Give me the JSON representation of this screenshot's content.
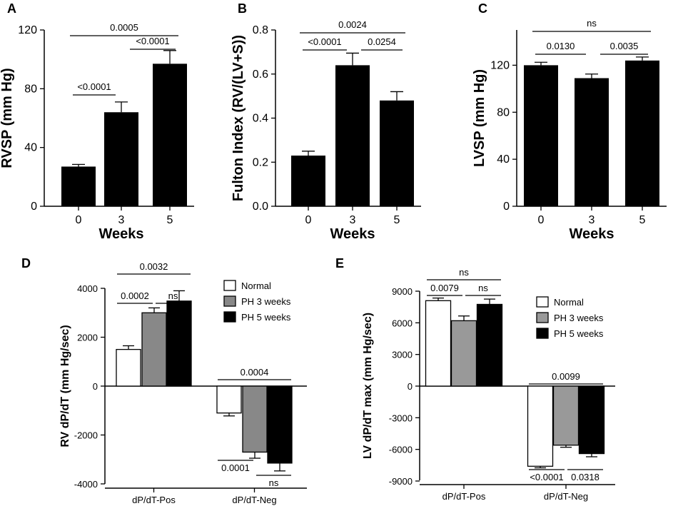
{
  "chart_data": [
    {
      "panel": "A",
      "type": "bar",
      "categories": [
        "0",
        "3",
        "5"
      ],
      "values": [
        27,
        64,
        97
      ],
      "errors": [
        1.5,
        7,
        9
      ],
      "xlabel": "Weeks",
      "ylabel": "RVSP (mm Hg)",
      "ylim": [
        0,
        120
      ],
      "yticks": [
        "0",
        "40",
        "80",
        "120"
      ],
      "comparisons": [
        {
          "from": 0,
          "to": 2,
          "label": "0.0005"
        },
        {
          "from": 0,
          "to": 1,
          "label": "<0.0001"
        },
        {
          "from": 1,
          "to": 2,
          "label": "<0.0001"
        }
      ]
    },
    {
      "panel": "B",
      "type": "bar",
      "categories": [
        "0",
        "3",
        "5"
      ],
      "values": [
        0.23,
        0.64,
        0.48
      ],
      "errors": [
        0.02,
        0.055,
        0.04
      ],
      "xlabel": "Weeks",
      "ylabel": "Fulton Index (RV/(LV+S))",
      "ylim": [
        0,
        0.8
      ],
      "yticks": [
        "0.0",
        "0.2",
        "0.4",
        "0.6",
        "0.8"
      ],
      "comparisons": [
        {
          "from": 0,
          "to": 2,
          "label": "0.0024"
        },
        {
          "from": 0,
          "to": 1,
          "label": "<0.0001"
        },
        {
          "from": 1,
          "to": 2,
          "label": "0.0254"
        }
      ]
    },
    {
      "panel": "C",
      "type": "bar",
      "categories": [
        "0",
        "3",
        "5"
      ],
      "values": [
        120,
        109,
        124
      ],
      "errors": [
        2.5,
        3.5,
        3
      ],
      "xlabel": "Weeks",
      "ylabel": "LVSP (mm Hg)",
      "ylim": [
        0,
        150
      ],
      "yticks": [
        "0",
        "40",
        "80",
        "120"
      ],
      "comparisons": [
        {
          "from": 0,
          "to": 2,
          "label": "ns"
        },
        {
          "from": 0,
          "to": 1,
          "label": "0.0130"
        },
        {
          "from": 1,
          "to": 2,
          "label": "0.0035"
        }
      ]
    },
    {
      "panel": "D",
      "type": "bar",
      "categories": [
        "dP/dT-Pos",
        "dP/dT-Neg"
      ],
      "series": [
        {
          "name": "Normal",
          "color": "#ffffff",
          "values": [
            1500,
            -1100
          ],
          "errors": [
            150,
            120
          ]
        },
        {
          "name": "PH 3 weeks",
          "color": "#888888",
          "values": [
            3000,
            -2700
          ],
          "errors": [
            200,
            250
          ]
        },
        {
          "name": "PH 5 weeks",
          "color": "#000000",
          "values": [
            3480,
            -3150
          ],
          "errors": [
            420,
            320
          ]
        }
      ],
      "ylabel": "RV dP/dT (mm Hg/sec)",
      "ylim": [
        -4000,
        4000
      ],
      "yticks": [
        "-4000",
        "-2000",
        "0",
        "2000",
        "4000"
      ],
      "comparisons": [
        {
          "group": 0,
          "from": 0,
          "to": 2,
          "label": "0.0032",
          "side": "above"
        },
        {
          "group": 0,
          "from": 0,
          "to": 1,
          "label": "0.0002",
          "side": "above"
        },
        {
          "group": 0,
          "from": 1,
          "to": 2,
          "label": "ns",
          "side": "above"
        },
        {
          "group": 1,
          "from": 0,
          "to": 2,
          "label": "0.0004",
          "side": "above"
        },
        {
          "group": 1,
          "from": 0,
          "to": 1,
          "label": "0.0001",
          "side": "below"
        },
        {
          "group": 1,
          "from": 1,
          "to": 2,
          "label": "ns",
          "side": "below"
        }
      ]
    },
    {
      "panel": "E",
      "type": "bar",
      "categories": [
        "dP/dT-Pos",
        "dP/dT-Neg"
      ],
      "series": [
        {
          "name": "Normal",
          "color": "#ffffff",
          "values": [
            8100,
            -7600
          ],
          "errors": [
            250,
            150
          ]
        },
        {
          "name": "PH 3 weeks",
          "color": "#999999",
          "values": [
            6200,
            -5600
          ],
          "errors": [
            450,
            200
          ]
        },
        {
          "name": "PH 5 weeks",
          "color": "#000000",
          "values": [
            7750,
            -6400
          ],
          "errors": [
            500,
            300
          ]
        }
      ],
      "ylabel": "LV dP/dT max (mm Hg/sec)",
      "ylim": [
        -9000,
        9000
      ],
      "yticks": [
        "-9000",
        "-6000",
        "-3000",
        "0",
        "3000",
        "6000",
        "9000"
      ],
      "comparisons": [
        {
          "group": 0,
          "from": 0,
          "to": 2,
          "label": "ns",
          "side": "above"
        },
        {
          "group": 0,
          "from": 0,
          "to": 1,
          "label": "0.0079",
          "side": "above"
        },
        {
          "group": 0,
          "from": 1,
          "to": 2,
          "label": "ns",
          "side": "above"
        },
        {
          "group": 1,
          "from": 0,
          "to": 2,
          "label": "0.0099",
          "side": "above"
        },
        {
          "group": 1,
          "from": 0,
          "to": 1,
          "label": "<0.0001",
          "side": "below"
        },
        {
          "group": 1,
          "from": 1,
          "to": 2,
          "label": "0.0318",
          "side": "below"
        }
      ]
    }
  ]
}
